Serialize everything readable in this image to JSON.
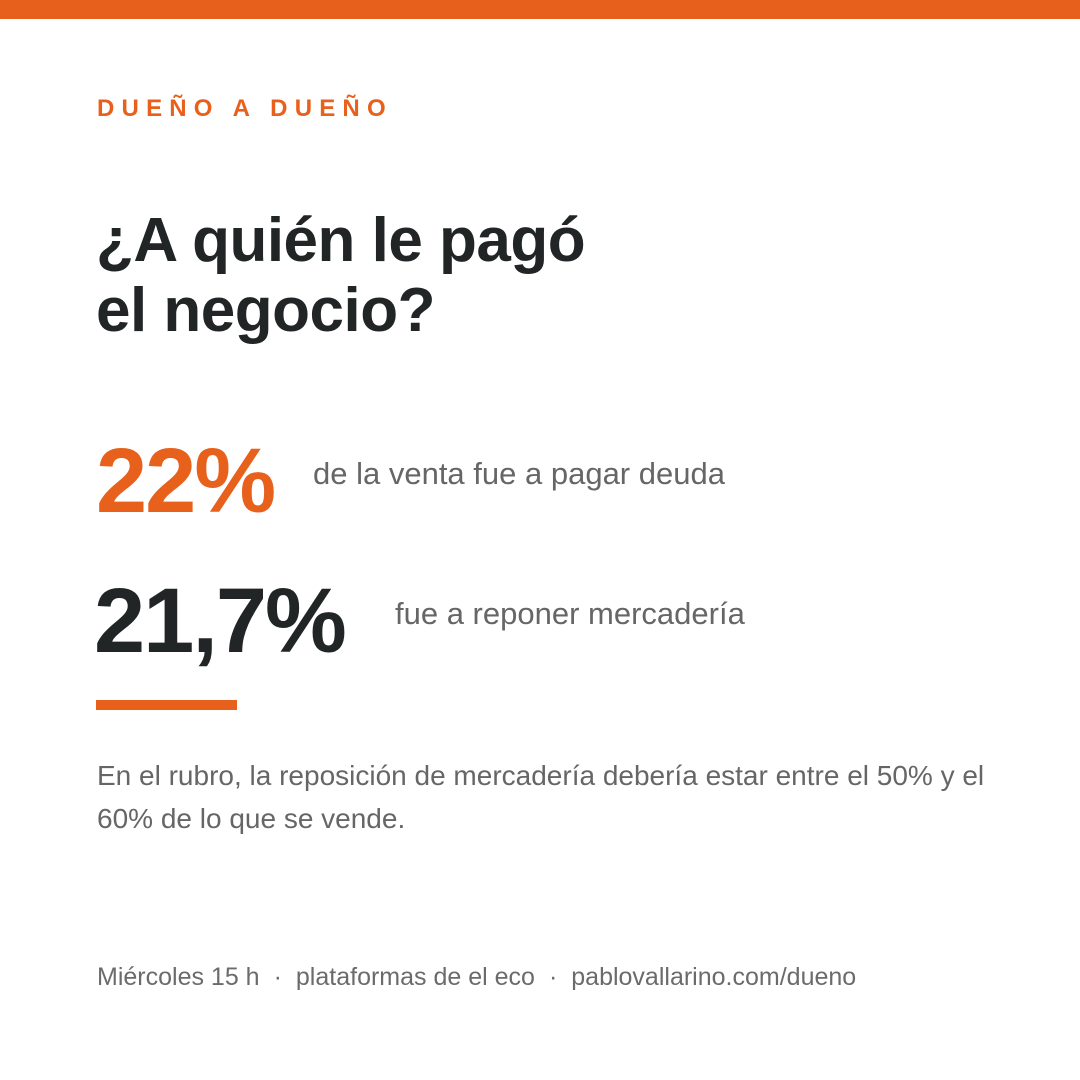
{
  "colors": {
    "accent": "#e8611c",
    "dark_text": "#222526",
    "gray_text": "#666666"
  },
  "header": {
    "kicker": "DUEÑO A DUEÑO"
  },
  "headline": {
    "lines": [
      "¿A quién le pagó",
      "el negocio?"
    ]
  },
  "stats": [
    {
      "value": "22%",
      "label": "de la venta fue a pagar deuda"
    },
    {
      "value": "21,7%",
      "label": "fue a reponer mercadería"
    }
  ],
  "note": "En el rubro, la reposición de mercadería debería estar entre el 50% y el 60% de lo que se vende.",
  "footer": {
    "items": [
      "Miércoles 15 h",
      "plataformas de el eco",
      "pablovallarino.com/dueno"
    ],
    "separator": "·"
  }
}
